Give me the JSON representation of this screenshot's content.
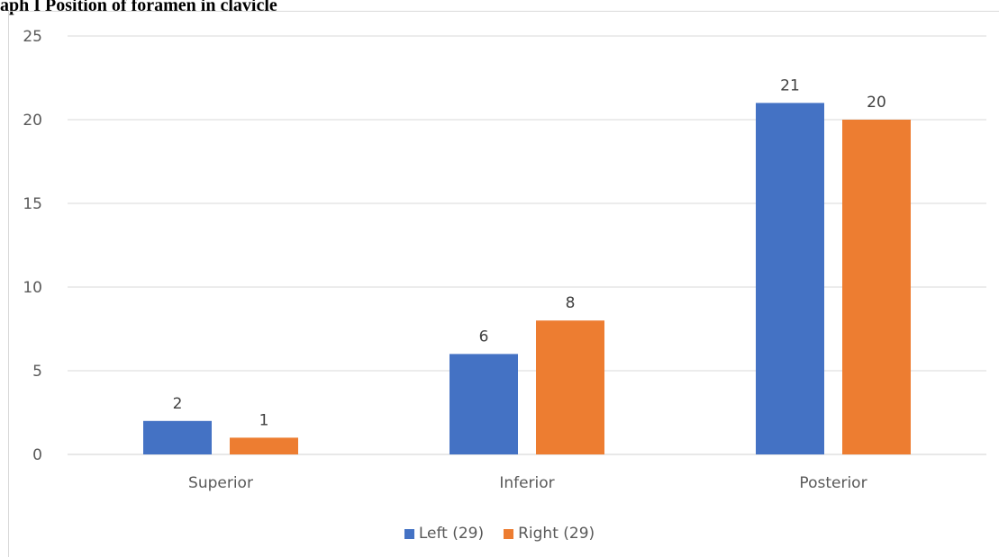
{
  "caption": "aph I Position of foramen in clavicle",
  "chart_data": {
    "type": "bar",
    "categories": [
      "Superior",
      "Inferior",
      "Posterior"
    ],
    "series": [
      {
        "name": "Left (29)",
        "values": [
          2,
          6,
          21
        ],
        "color": "#4472C4"
      },
      {
        "name": "Right (29)",
        "values": [
          1,
          8,
          20
        ],
        "color": "#ED7D31"
      }
    ],
    "ylim": [
      0,
      25
    ],
    "yticks": [
      0,
      5,
      10,
      15,
      20,
      25
    ],
    "grid": true,
    "data_labels": true,
    "legend": "bottom-center"
  }
}
